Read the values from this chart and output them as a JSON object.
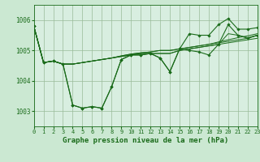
{
  "title": "Graphe pression niveau de la mer (hPa)",
  "background_color": "#cbe8d2",
  "plot_bg_color": "#d8eee0",
  "grid_color": "#99bb99",
  "line_color": "#1a6b1a",
  "marker_color": "#1a6b1a",
  "xlim": [
    0,
    23
  ],
  "ylim": [
    1002.5,
    1006.5
  ],
  "yticks": [
    1003,
    1004,
    1005,
    1006
  ],
  "xticks": [
    0,
    1,
    2,
    3,
    4,
    5,
    6,
    7,
    8,
    9,
    10,
    11,
    12,
    13,
    14,
    15,
    16,
    17,
    18,
    19,
    20,
    21,
    22,
    23
  ],
  "series": [
    [
      1005.8,
      1004.6,
      1004.65,
      1004.55,
      1003.2,
      1003.1,
      1003.15,
      1003.1,
      1003.8,
      1004.7,
      1004.85,
      1004.85,
      1004.9,
      1004.75,
      1004.3,
      1005.05,
      1005.0,
      1004.95,
      1004.85,
      1005.2,
      1005.85,
      1005.5,
      1005.4,
      1005.5
    ],
    [
      1005.8,
      1004.6,
      1004.65,
      1004.55,
      1004.55,
      1004.6,
      1004.65,
      1004.7,
      1004.75,
      1004.8,
      1004.85,
      1004.9,
      1004.9,
      1004.9,
      1004.9,
      1005.0,
      1005.05,
      1005.1,
      1005.15,
      1005.2,
      1005.25,
      1005.3,
      1005.35,
      1005.4
    ],
    [
      1005.8,
      1004.6,
      1004.65,
      1004.55,
      1004.55,
      1004.6,
      1004.65,
      1004.7,
      1004.75,
      1004.82,
      1004.88,
      1004.92,
      1004.95,
      1005.0,
      1005.0,
      1005.05,
      1005.1,
      1005.15,
      1005.2,
      1005.25,
      1005.3,
      1005.35,
      1005.4,
      1005.5
    ],
    [
      1005.8,
      1004.6,
      1004.65,
      1004.55,
      1004.55,
      1004.6,
      1004.65,
      1004.7,
      1004.75,
      1004.82,
      1004.88,
      1004.92,
      1004.95,
      1005.0,
      1005.0,
      1005.05,
      1005.1,
      1005.15,
      1005.2,
      1005.28,
      1005.35,
      1005.42,
      1005.48,
      1005.55
    ],
    [
      1005.8,
      1004.6,
      1004.65,
      1004.55,
      1004.55,
      1004.6,
      1004.65,
      1004.7,
      1004.75,
      1004.8,
      1004.85,
      1004.9,
      1004.9,
      1004.9,
      1004.9,
      1005.0,
      1005.05,
      1005.1,
      1005.15,
      1005.2,
      1005.55,
      1005.5,
      1005.42,
      1005.5
    ],
    [
      1005.8,
      1004.6,
      1004.65,
      1004.55,
      1003.2,
      1003.1,
      1003.15,
      1003.1,
      1003.8,
      1004.7,
      1004.85,
      1004.85,
      1004.9,
      1004.75,
      1004.3,
      1005.05,
      1005.55,
      1005.5,
      1005.5,
      1005.85,
      1006.05,
      1005.7,
      1005.7,
      1005.75
    ]
  ],
  "marker_series": [
    0,
    5
  ],
  "title_fontsize": 6.5,
  "tick_fontsize": 5.0,
  "ytick_fontsize": 5.5
}
